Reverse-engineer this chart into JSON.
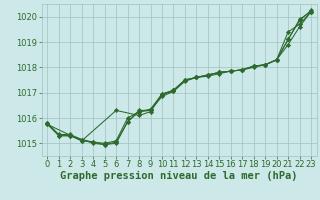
{
  "series": [
    {
      "x": [
        0,
        1,
        2,
        3,
        4,
        5,
        6,
        7,
        8,
        9,
        10,
        11,
        12,
        13,
        14,
        15,
        16,
        17,
        18,
        19,
        20,
        21,
        22,
        23
      ],
      "y": [
        1015.8,
        1015.3,
        1015.3,
        1015.1,
        1015.05,
        1014.95,
        1015.0,
        1015.85,
        1016.25,
        1016.3,
        1016.9,
        1017.1,
        1017.5,
        1017.6,
        1017.7,
        1017.8,
        1017.85,
        1017.9,
        1018.05,
        1018.1,
        1018.3,
        1019.4,
        1019.7,
        1020.2
      ]
    },
    {
      "x": [
        0,
        1,
        2,
        3,
        4,
        5,
        6,
        7,
        8,
        9,
        10,
        11,
        12,
        13,
        14,
        15,
        16,
        17,
        18,
        19,
        20,
        21,
        22,
        23
      ],
      "y": [
        1015.75,
        1015.3,
        1015.3,
        1015.15,
        1015.05,
        1015.0,
        1015.1,
        1016.0,
        1016.25,
        1016.35,
        1016.95,
        1017.1,
        1017.5,
        1017.6,
        1017.7,
        1017.8,
        1017.85,
        1017.9,
        1018.05,
        1018.1,
        1018.3,
        1019.1,
        1019.85,
        1020.25
      ]
    },
    {
      "x": [
        0,
        1,
        2,
        3,
        4,
        5,
        6,
        7,
        8,
        9,
        10,
        11,
        12,
        13,
        14,
        15,
        16,
        17,
        18,
        19,
        20,
        21,
        22,
        23
      ],
      "y": [
        1015.8,
        1015.35,
        1015.35,
        1015.15,
        1015.0,
        1014.95,
        1015.05,
        1015.85,
        1016.3,
        1016.3,
        1016.85,
        1017.05,
        1017.45,
        1017.6,
        1017.65,
        1017.75,
        1017.85,
        1017.9,
        1018.0,
        1018.1,
        1018.3,
        1019.1,
        1019.9,
        1020.2
      ]
    },
    {
      "x": [
        0,
        3,
        6,
        8,
        9,
        10,
        11,
        12,
        13,
        14,
        15,
        16,
        17,
        18,
        19,
        20,
        21,
        22,
        23
      ],
      "y": [
        1015.75,
        1015.1,
        1016.3,
        1016.1,
        1016.25,
        1016.95,
        1017.05,
        1017.5,
        1017.6,
        1017.7,
        1017.8,
        1017.85,
        1017.9,
        1018.05,
        1018.1,
        1018.3,
        1018.9,
        1019.6,
        1020.2
      ]
    }
  ],
  "line_color": "#2d6a2d",
  "marker_style": "D",
  "marker_size": 2.2,
  "bg_color": "#cce8e8",
  "grid_color_minor": "#c0d8d8",
  "grid_color_major": "#a0c0c0",
  "xlim": [
    -0.5,
    23.5
  ],
  "ylim": [
    1014.5,
    1020.5
  ],
  "yticks": [
    1015,
    1016,
    1017,
    1018,
    1019,
    1020
  ],
  "xticks": [
    0,
    1,
    2,
    3,
    4,
    5,
    6,
    7,
    8,
    9,
    10,
    11,
    12,
    13,
    14,
    15,
    16,
    17,
    18,
    19,
    20,
    21,
    22,
    23
  ],
  "xlabel": "Graphe pression niveau de la mer (hPa)",
  "xlabel_color": "#2d6a2d",
  "xlabel_fontsize": 7.5,
  "tick_fontsize": 6.0,
  "tick_color": "#2d6a2d",
  "linewidth": 0.75
}
